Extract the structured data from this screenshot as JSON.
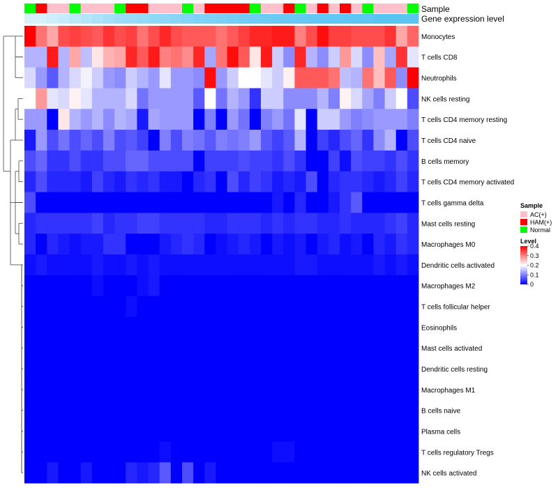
{
  "chart_data": {
    "type": "heatmap",
    "title": "",
    "xlabel": "",
    "ylabel": "",
    "annotation_labels": {
      "sample": "Sample",
      "level": "Gene expression level"
    },
    "sample_groups": [
      "Normal",
      "HAM",
      "AC",
      "AC",
      "Normal",
      "AC",
      "AC",
      "AC",
      "Normal",
      "HAM",
      "HAM",
      "AC",
      "AC",
      "AC",
      "Normal",
      "AC",
      "HAM",
      "HAM",
      "HAM",
      "HAM",
      "Normal",
      "AC",
      "AC",
      "HAM",
      "Normal",
      "AC",
      "HAM",
      "AC",
      "HAM",
      "AC",
      "Normal",
      "AC",
      "AC",
      "AC",
      "Normal"
    ],
    "level_shades": [
      0.25,
      0.25,
      0.3,
      0.35,
      0.4,
      0.45,
      0.5,
      0.55,
      0.6,
      0.62,
      0.65,
      0.68,
      0.7,
      0.72,
      0.75,
      0.78,
      0.8,
      0.82,
      0.84,
      0.86,
      0.88,
      0.9,
      0.91,
      0.92,
      0.93,
      0.94,
      0.95,
      0.96,
      0.97,
      0.98,
      0.99,
      1.0,
      1.0,
      1.0,
      1.0
    ],
    "rows": [
      "Monocytes",
      "T cells CD8",
      "Neutrophils",
      "NK cells resting",
      "T cells CD4 memory resting",
      "T cells CD4 naive",
      "B cells memory",
      "T cells CD4 memory activated",
      "T cells gamma delta",
      "Mast cells resting",
      "Macrophages M0",
      "Dendritic cells activated",
      "Macrophages M2",
      "T cells follicular helper",
      "Eosinophils",
      "Mast cells activated",
      "Dendritic cells resting",
      "Macrophages M1",
      "B cells naive",
      "Plasma cells",
      "T cells regulatory  Tregs",
      "NK cells activated"
    ],
    "values": [
      [
        0.4,
        0.31,
        0.27,
        0.34,
        0.35,
        0.34,
        0.33,
        0.36,
        0.34,
        0.35,
        0.31,
        0.34,
        0.37,
        0.34,
        0.33,
        0.33,
        0.33,
        0.31,
        0.33,
        0.35,
        0.37,
        0.37,
        0.38,
        0.38,
        0.3,
        0.34,
        0.39,
        0.35,
        0.35,
        0.34,
        0.34,
        0.34,
        0.36,
        0.27,
        0.32
      ],
      [
        0.14,
        0.14,
        0.38,
        0.14,
        0.27,
        0.15,
        0.22,
        0.26,
        0.27,
        0.37,
        0.33,
        0.38,
        0.3,
        0.31,
        0.29,
        0.37,
        0.13,
        0.31,
        0.39,
        0.33,
        0.22,
        0.38,
        0.16,
        0.11,
        0.37,
        0.14,
        0.11,
        0.16,
        0.28,
        0.17,
        0.11,
        0.25,
        0.13,
        0.36,
        0.18
      ],
      [
        0.17,
        0.12,
        0.07,
        0.14,
        0.17,
        0.19,
        0.16,
        0.12,
        0.11,
        0.16,
        0.14,
        0.12,
        0.18,
        0.12,
        0.12,
        0.11,
        0.39,
        0.12,
        0.16,
        0.2,
        0.2,
        0.18,
        0.16,
        0.21,
        0.33,
        0.33,
        0.33,
        0.31,
        0.15,
        0.14,
        0.31,
        0.25,
        0.33,
        0.11,
        0.4
      ],
      [
        0.2,
        0.28,
        0.18,
        0.17,
        0.21,
        0.18,
        0.14,
        0.14,
        0.14,
        0.17,
        0.09,
        0.12,
        0.12,
        0.12,
        0.12,
        0.07,
        0.2,
        0.09,
        0.14,
        0.12,
        0.04,
        0.16,
        0.16,
        0.11,
        0.11,
        0.11,
        0.14,
        0.1,
        0.21,
        0.17,
        0.13,
        0.1,
        0.16,
        0.2,
        0.06
      ],
      [
        0.12,
        0.12,
        0.0,
        0.22,
        0.14,
        0.12,
        0.14,
        0.11,
        0.14,
        0.13,
        0.02,
        0.13,
        0.12,
        0.12,
        0.12,
        0.0,
        0.1,
        0.0,
        0.12,
        0.09,
        0.0,
        0.1,
        0.12,
        0.09,
        0.18,
        0.0,
        0.16,
        0.16,
        0.12,
        0.1,
        0.11,
        0.12,
        0.12,
        0.12,
        0.1
      ],
      [
        0.02,
        0.12,
        0.06,
        0.09,
        0.06,
        0.08,
        0.06,
        0.1,
        0.06,
        0.07,
        0.05,
        0.0,
        0.1,
        0.06,
        0.1,
        0.09,
        0.07,
        0.1,
        0.09,
        0.1,
        0.12,
        0.07,
        0.05,
        0.07,
        0.14,
        0.0,
        0.05,
        0.03,
        0.06,
        0.08,
        0.04,
        0.11,
        0.14,
        0.0,
        0.06
      ],
      [
        0.06,
        0.08,
        0.04,
        0.04,
        0.06,
        0.04,
        0.04,
        0.06,
        0.06,
        0.08,
        0.08,
        0.06,
        0.06,
        0.06,
        0.06,
        0.0,
        0.05,
        0.05,
        0.05,
        0.06,
        0.05,
        0.05,
        0.04,
        0.06,
        0.04,
        0.0,
        0.0,
        0.05,
        0.01,
        0.06,
        0.05,
        0.05,
        0.04,
        0.06,
        0.04
      ],
      [
        0.03,
        0.06,
        0.03,
        0.03,
        0.03,
        0.02,
        0.05,
        0.03,
        0.02,
        0.04,
        0.03,
        0.04,
        0.02,
        0.02,
        0.0,
        0.03,
        0.04,
        0.0,
        0.06,
        0.03,
        0.05,
        0.04,
        0.02,
        0.03,
        0.02,
        0.06,
        0.0,
        0.03,
        0.04,
        0.04,
        0.03,
        0.02,
        0.03,
        0.05,
        0.03
      ],
      [
        0.06,
        0.0,
        0.0,
        0.0,
        0.0,
        0.0,
        0.0,
        0.0,
        0.0,
        0.0,
        0.0,
        0.0,
        0.0,
        0.0,
        0.0,
        0.0,
        0.0,
        0.0,
        0.0,
        0.0,
        0.0,
        0.0,
        0.02,
        0.0,
        0.03,
        0.0,
        0.0,
        0.02,
        0.04,
        0.07,
        0.0,
        0.0,
        0.0,
        0.0,
        0.0
      ],
      [
        0.03,
        0.04,
        0.04,
        0.04,
        0.04,
        0.04,
        0.05,
        0.03,
        0.04,
        0.04,
        0.05,
        0.05,
        0.04,
        0.04,
        0.04,
        0.04,
        0.03,
        0.03,
        0.04,
        0.04,
        0.04,
        0.03,
        0.04,
        0.03,
        0.04,
        0.04,
        0.03,
        0.03,
        0.04,
        0.03,
        0.03,
        0.03,
        0.04,
        0.05,
        0.03
      ],
      [
        0.03,
        0.0,
        0.03,
        0.02,
        0.01,
        0.02,
        0.02,
        0.04,
        0.04,
        0.0,
        0.0,
        0.0,
        0.02,
        0.03,
        0.04,
        0.03,
        0.0,
        0.01,
        0.02,
        0.03,
        0.02,
        0.0,
        0.02,
        0.01,
        0.02,
        0.0,
        0.02,
        0.03,
        0.01,
        0.02,
        0.0,
        0.03,
        0.02,
        0.04,
        0.03
      ],
      [
        0.01,
        0.02,
        0.01,
        0.01,
        0.01,
        0.01,
        0.02,
        0.01,
        0.01,
        0.02,
        0.01,
        0.02,
        0.01,
        0.01,
        0.01,
        0.01,
        0.01,
        0.01,
        0.01,
        0.01,
        0.01,
        0.01,
        0.01,
        0.01,
        0.02,
        0.02,
        0.01,
        0.01,
        0.01,
        0.01,
        0.01,
        0.02,
        0.01,
        0.02,
        0.01
      ],
      [
        0.0,
        0.0,
        0.0,
        0.0,
        0.0,
        0.0,
        0.01,
        0.0,
        0.0,
        0.0,
        0.01,
        0.02,
        0.0,
        0.0,
        0.0,
        0.0,
        0.0,
        0.0,
        0.0,
        0.0,
        0.0,
        0.0,
        0.0,
        0.0,
        0.0,
        0.0,
        0.0,
        0.0,
        0.0,
        0.0,
        0.0,
        0.0,
        0.0,
        0.0,
        0.0
      ],
      [
        0.0,
        0.0,
        0.0,
        0.0,
        0.0,
        0.0,
        0.0,
        0.0,
        0.0,
        0.01,
        0.0,
        0.0,
        0.0,
        0.0,
        0.0,
        0.0,
        0.0,
        0.0,
        0.0,
        0.0,
        0.0,
        0.0,
        0.0,
        0.0,
        0.0,
        0.0,
        0.0,
        0.0,
        0.0,
        0.0,
        0.0,
        0.0,
        0.0,
        0.0,
        0.0
      ],
      [
        0.0,
        0.0,
        0.0,
        0.0,
        0.0,
        0.0,
        0.0,
        0.0,
        0.0,
        0.0,
        0.0,
        0.0,
        0.0,
        0.0,
        0.0,
        0.0,
        0.0,
        0.0,
        0.0,
        0.0,
        0.0,
        0.0,
        0.0,
        0.0,
        0.0,
        0.0,
        0.0,
        0.0,
        0.0,
        0.0,
        0.0,
        0.0,
        0.0,
        0.0,
        0.0
      ],
      [
        0.0,
        0.0,
        0.0,
        0.0,
        0.0,
        0.0,
        0.0,
        0.0,
        0.0,
        0.0,
        0.0,
        0.0,
        0.0,
        0.0,
        0.0,
        0.0,
        0.0,
        0.0,
        0.0,
        0.0,
        0.0,
        0.0,
        0.0,
        0.0,
        0.0,
        0.0,
        0.0,
        0.0,
        0.0,
        0.0,
        0.0,
        0.0,
        0.0,
        0.0,
        0.0
      ],
      [
        0.0,
        0.0,
        0.0,
        0.0,
        0.0,
        0.0,
        0.0,
        0.0,
        0.0,
        0.0,
        0.0,
        0.0,
        0.0,
        0.0,
        0.0,
        0.0,
        0.0,
        0.0,
        0.0,
        0.0,
        0.0,
        0.0,
        0.0,
        0.0,
        0.0,
        0.0,
        0.0,
        0.0,
        0.0,
        0.0,
        0.0,
        0.0,
        0.0,
        0.0,
        0.0
      ],
      [
        0.0,
        0.0,
        0.0,
        0.0,
        0.0,
        0.0,
        0.0,
        0.0,
        0.0,
        0.0,
        0.0,
        0.0,
        0.0,
        0.0,
        0.0,
        0.0,
        0.0,
        0.0,
        0.0,
        0.0,
        0.0,
        0.0,
        0.0,
        0.0,
        0.0,
        0.0,
        0.0,
        0.0,
        0.0,
        0.0,
        0.0,
        0.0,
        0.0,
        0.0,
        0.0
      ],
      [
        0.0,
        0.0,
        0.0,
        0.0,
        0.0,
        0.0,
        0.0,
        0.0,
        0.0,
        0.0,
        0.0,
        0.0,
        0.0,
        0.0,
        0.0,
        0.0,
        0.0,
        0.0,
        0.0,
        0.0,
        0.0,
        0.0,
        0.0,
        0.0,
        0.0,
        0.0,
        0.0,
        0.0,
        0.0,
        0.0,
        0.0,
        0.0,
        0.0,
        0.0,
        0.0
      ],
      [
        0.0,
        0.0,
        0.0,
        0.0,
        0.0,
        0.0,
        0.0,
        0.0,
        0.0,
        0.0,
        0.0,
        0.0,
        0.0,
        0.0,
        0.0,
        0.0,
        0.0,
        0.0,
        0.0,
        0.0,
        0.0,
        0.0,
        0.0,
        0.0,
        0.0,
        0.0,
        0.0,
        0.0,
        0.0,
        0.0,
        0.0,
        0.0,
        0.0,
        0.0,
        0.0
      ],
      [
        0.0,
        0.0,
        0.0,
        0.0,
        0.0,
        0.0,
        0.0,
        0.0,
        0.0,
        0.0,
        0.0,
        0.0,
        0.01,
        0.0,
        0.0,
        0.0,
        0.0,
        0.0,
        0.0,
        0.0,
        0.0,
        0.0,
        0.01,
        0.01,
        0.0,
        0.0,
        0.0,
        0.0,
        0.0,
        0.0,
        0.0,
        0.0,
        0.0,
        0.0,
        0.0
      ],
      [
        0.0,
        0.0,
        0.02,
        0.0,
        0.0,
        0.02,
        0.0,
        0.0,
        0.0,
        0.03,
        0.02,
        0.03,
        0.07,
        0.0,
        0.06,
        0.0,
        0.02,
        0.0,
        0.0,
        0.0,
        0.0,
        0.0,
        0.0,
        0.0,
        0.0,
        0.0,
        0.0,
        0.0,
        0.0,
        0.0,
        0.0,
        0.0,
        0.0,
        0.0,
        0.0
      ]
    ],
    "colorbar": {
      "min": 0,
      "max": 0.4,
      "ticks": [
        "0.4",
        "0.3",
        "0.2",
        "0.1",
        "0"
      ],
      "tick_values": [
        0.4,
        0.3,
        0.2,
        0.1,
        0
      ],
      "colors": [
        "#0000ff",
        "#ffffff",
        "#ff0000"
      ]
    },
    "legends": {
      "sample": {
        "title": "Sample",
        "entries": [
          {
            "label": "AC(+)",
            "color": "#ffc0cb"
          },
          {
            "label": "HAM(+)",
            "color": "#ff0000"
          },
          {
            "label": "Normal",
            "color": "#00ff00"
          }
        ]
      },
      "level": {
        "title": "Level"
      }
    },
    "group_colors": {
      "AC": "#ffc0cb",
      "HAM": "#ff0000",
      "Normal": "#00ff00"
    },
    "level_color_from": "#ffffff",
    "level_color_to": "#5bc5f2",
    "dendrogram": "rows-left"
  }
}
